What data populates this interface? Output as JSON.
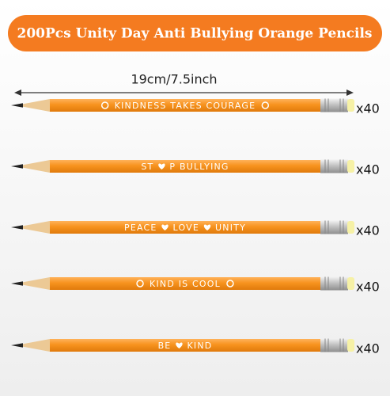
{
  "header": {
    "title": "200Pcs Unity Day Anti Bullying Orange Pencils"
  },
  "dimension": "19cm/7.5inch",
  "pencils": [
    {
      "label_parts": [
        "KINDNESS TAKES COURAGE"
      ],
      "quantity": "x40"
    },
    {
      "label_parts": [
        "ST",
        "P BULLYING"
      ],
      "quantity": "x40"
    },
    {
      "label_parts": [
        "PEACE",
        "LOVE",
        "UNITY"
      ],
      "quantity": "x40"
    },
    {
      "label_parts": [
        "KIND IS COOL"
      ],
      "quantity": "x40"
    },
    {
      "label_parts": [
        "BE",
        "KIND"
      ],
      "quantity": "x40"
    }
  ]
}
